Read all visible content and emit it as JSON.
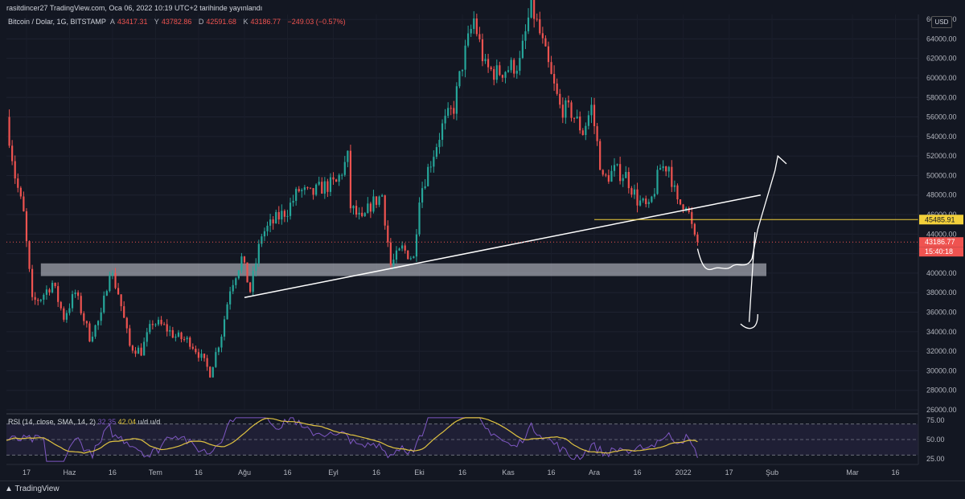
{
  "header": {
    "publisher": "rasitdincer27 TradingView.com, Oca 06, 2022 10:19 UTC+2 tarihinde yayınlandı"
  },
  "legend": {
    "symbol": "Bitcoin / Dolar, 1G, BITSTAMP",
    "open_label": "A",
    "open_value": "43417.31",
    "high_label": "Y",
    "high_value": "43782.86",
    "low_label": "D",
    "low_value": "42591.68",
    "close_label": "K",
    "close_value": "43186.77",
    "change": "−249.03 (−0.57%)"
  },
  "currency_button": "USD",
  "rsi_legend": {
    "title": "RSI (14, close, SMA, 14, 2)",
    "value1": "32.35",
    "value2": "42.04",
    "na1": "u/d",
    "na2": "u/d"
  },
  "footer": {
    "brand": "TradingView"
  },
  "colors": {
    "background": "#131722",
    "bull": "#26a69a",
    "bear": "#ef5350",
    "rsi_line": "#7e57c2",
    "rsi_ma": "#e0c341",
    "support_zone": "#d1d4dc",
    "yellow_line": "#f2d03b"
  },
  "chart_data": {
    "type": "candlestick",
    "title": "Bitcoin / Dolar, 1G, BITSTAMP",
    "y_axis": {
      "ticks": [
        "66000.00",
        "64000.00",
        "62000.00",
        "60000.00",
        "58000.00",
        "56000.00",
        "54000.00",
        "52000.00",
        "50000.00",
        "48000.00",
        "46000.00",
        "44000.00",
        "42000.00",
        "40000.00",
        "38000.00",
        "36000.00",
        "34000.00",
        "32000.00",
        "30000.00",
        "28000.00",
        "26000.00"
      ],
      "ylim": [
        26000,
        66500
      ]
    },
    "x_axis": {
      "ticks": [
        "17",
        "Haz",
        "16",
        "Tem",
        "16",
        "Ağu",
        "16",
        "Eyl",
        "16",
        "Eki",
        "16",
        "Kas",
        "16",
        "Ara",
        "16",
        "2022",
        "17",
        "Şub",
        "Mar",
        "16"
      ]
    },
    "price_labels": {
      "yellow_level": "45485.91",
      "last_price": "43186.77",
      "countdown": "15:40:18"
    },
    "close_path": [
      [
        "2021-05-10",
        56000
      ],
      [
        "2021-05-13",
        50000
      ],
      [
        "2021-05-16",
        46000
      ],
      [
        "2021-05-19",
        37000
      ],
      [
        "2021-05-22",
        37500
      ],
      [
        "2021-05-26",
        39000
      ],
      [
        "2021-05-30",
        35500
      ],
      [
        "2021-06-03",
        38000
      ],
      [
        "2021-06-08",
        33500
      ],
      [
        "2021-06-12",
        35500
      ],
      [
        "2021-06-15",
        40500
      ],
      [
        "2021-06-18",
        38000
      ],
      [
        "2021-06-22",
        32500
      ],
      [
        "2021-06-26",
        32000
      ],
      [
        "2021-06-30",
        35000
      ],
      [
        "2021-07-04",
        34500
      ],
      [
        "2021-07-08",
        33500
      ],
      [
        "2021-07-13",
        33000
      ],
      [
        "2021-07-16",
        31800
      ],
      [
        "2021-07-20",
        29800
      ],
      [
        "2021-07-24",
        33800
      ],
      [
        "2021-07-27",
        38500
      ],
      [
        "2021-07-31",
        41500
      ],
      [
        "2021-08-03",
        38200
      ],
      [
        "2021-08-07",
        44000
      ],
      [
        "2021-08-12",
        45500
      ],
      [
        "2021-08-16",
        46500
      ],
      [
        "2021-08-20",
        48500
      ],
      [
        "2021-08-24",
        48000
      ],
      [
        "2021-08-28",
        48800
      ],
      [
        "2021-09-02",
        49200
      ],
      [
        "2021-09-06",
        51800
      ],
      [
        "2021-09-07",
        46800
      ],
      [
        "2021-09-11",
        45200
      ],
      [
        "2021-09-14",
        47000
      ],
      [
        "2021-09-18",
        48000
      ],
      [
        "2021-09-21",
        40800
      ],
      [
        "2021-09-25",
        42500
      ],
      [
        "2021-09-29",
        41500
      ],
      [
        "2021-10-01",
        48000
      ],
      [
        "2021-10-05",
        51500
      ],
      [
        "2021-10-09",
        55000
      ],
      [
        "2021-10-13",
        57000
      ],
      [
        "2021-10-16",
        61500
      ],
      [
        "2021-10-20",
        66000
      ],
      [
        "2021-10-24",
        61000
      ],
      [
        "2021-10-28",
        60500
      ],
      [
        "2021-11-01",
        61000
      ],
      [
        "2021-11-05",
        61500
      ],
      [
        "2021-11-09",
        67500
      ],
      [
        "2021-11-12",
        64500
      ],
      [
        "2021-11-16",
        60000
      ],
      [
        "2021-11-19",
        57000
      ],
      [
        "2021-11-23",
        56500
      ],
      [
        "2021-11-27",
        54500
      ],
      [
        "2021-11-30",
        57000
      ],
      [
        "2021-12-04",
        49500
      ],
      [
        "2021-12-08",
        50500
      ],
      [
        "2021-12-12",
        50000
      ],
      [
        "2021-12-16",
        47500
      ],
      [
        "2021-12-20",
        46500
      ],
      [
        "2021-12-24",
        50800
      ],
      [
        "2021-12-27",
        51000
      ],
      [
        "2021-12-30",
        47000
      ],
      [
        "2022-01-02",
        47300
      ],
      [
        "2022-01-05",
        43400
      ],
      [
        "2022-01-06",
        43186.77
      ]
    ],
    "rsi": {
      "ticks": [
        "75.00",
        "50.00",
        "25.00"
      ],
      "ylim": [
        20,
        80
      ],
      "band": [
        30,
        70
      ]
    }
  }
}
